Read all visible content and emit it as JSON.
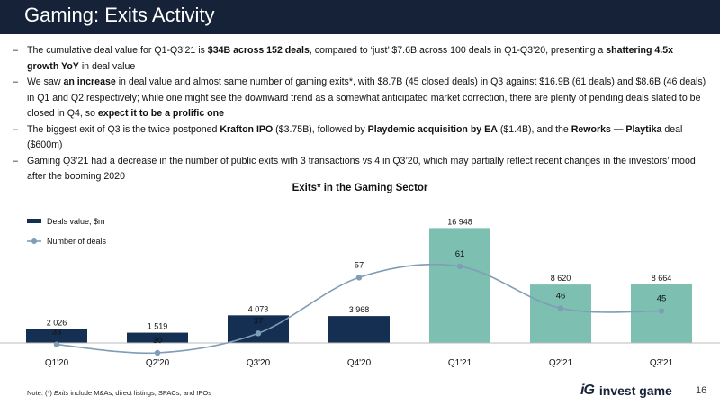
{
  "header": {
    "title": "Gaming: Exits Activity"
  },
  "bullets": [
    [
      {
        "t": "The cumulative deal value for Q1-Q3’21 is "
      },
      {
        "t": "$34B across 152 deals",
        "b": true
      },
      {
        "t": ", compared to ‘just’ $7.6B across 100 deals in Q1-Q3’20, presenting a "
      },
      {
        "t": "shattering 4.5x growth YoY",
        "b": true
      },
      {
        "t": " in deal value"
      }
    ],
    [
      {
        "t": "We saw "
      },
      {
        "t": "an increase",
        "b": true
      },
      {
        "t": " in deal value and almost same number of gaming exits*, with $8.7B (45 closed deals) in Q3 against $16.9B (61 deals) and $8.6B (46 deals) in Q1 and Q2 respectively; while one might see the downward trend as a somewhat anticipated market correction, there are plenty of pending deals slated to be closed in Q4, so "
      },
      {
        "t": "expect it to be a prolific one",
        "b": true
      }
    ],
    [
      {
        "t": "The biggest exit of Q3 is the twice postponed "
      },
      {
        "t": "Krafton IPO",
        "b": true
      },
      {
        "t": " ($3.75B), followed by "
      },
      {
        "t": "Playdemic acquisition by EA",
        "b": true
      },
      {
        "t": " ($1.4B), and the "
      },
      {
        "t": "Reworks — Playtika",
        "b": true
      },
      {
        "t": " deal ($600m)"
      }
    ],
    [
      {
        "t": "Gaming Q3’21 had a decrease in the number of public exits with 3 transactions vs 4 in Q3’20, which may partially reflect recent changes in the investors’ mood after the booming 2020"
      }
    ]
  ],
  "chart_data": {
    "type": "bar",
    "title": "Exits* in the Gaming Sector",
    "categories": [
      "Q1'20",
      "Q2'20",
      "Q3'20",
      "Q4'20",
      "Q1'21",
      "Q2'21",
      "Q3'21"
    ],
    "series": [
      {
        "name": "Deals value, $m",
        "kind": "bar",
        "values": [
          2026,
          1519,
          4073,
          3968,
          16948,
          8620,
          8664
        ],
        "labels": [
          "2 026",
          "1 519",
          "4 073",
          "3 968",
          "16 948",
          "8 620",
          "8 664"
        ],
        "colors": [
          "#152f52",
          "#152f52",
          "#152f52",
          "#152f52",
          "#7dc0b2",
          "#7dc0b2",
          "#7dc0b2"
        ]
      },
      {
        "name": "Number of deals",
        "kind": "line",
        "smooth": true,
        "color": "#7f9db5",
        "values": [
          33,
          30,
          37,
          57,
          61,
          46,
          45
        ]
      }
    ],
    "legend": "left"
  },
  "footer": {
    "note_prefix": "Note: (*) ",
    "note_italic": "Exits",
    "note_rest": " include M&As, direct listings; SPACs, and IPOs"
  },
  "brand": {
    "mark": "iG",
    "name": "invest game"
  },
  "page_number": "16"
}
